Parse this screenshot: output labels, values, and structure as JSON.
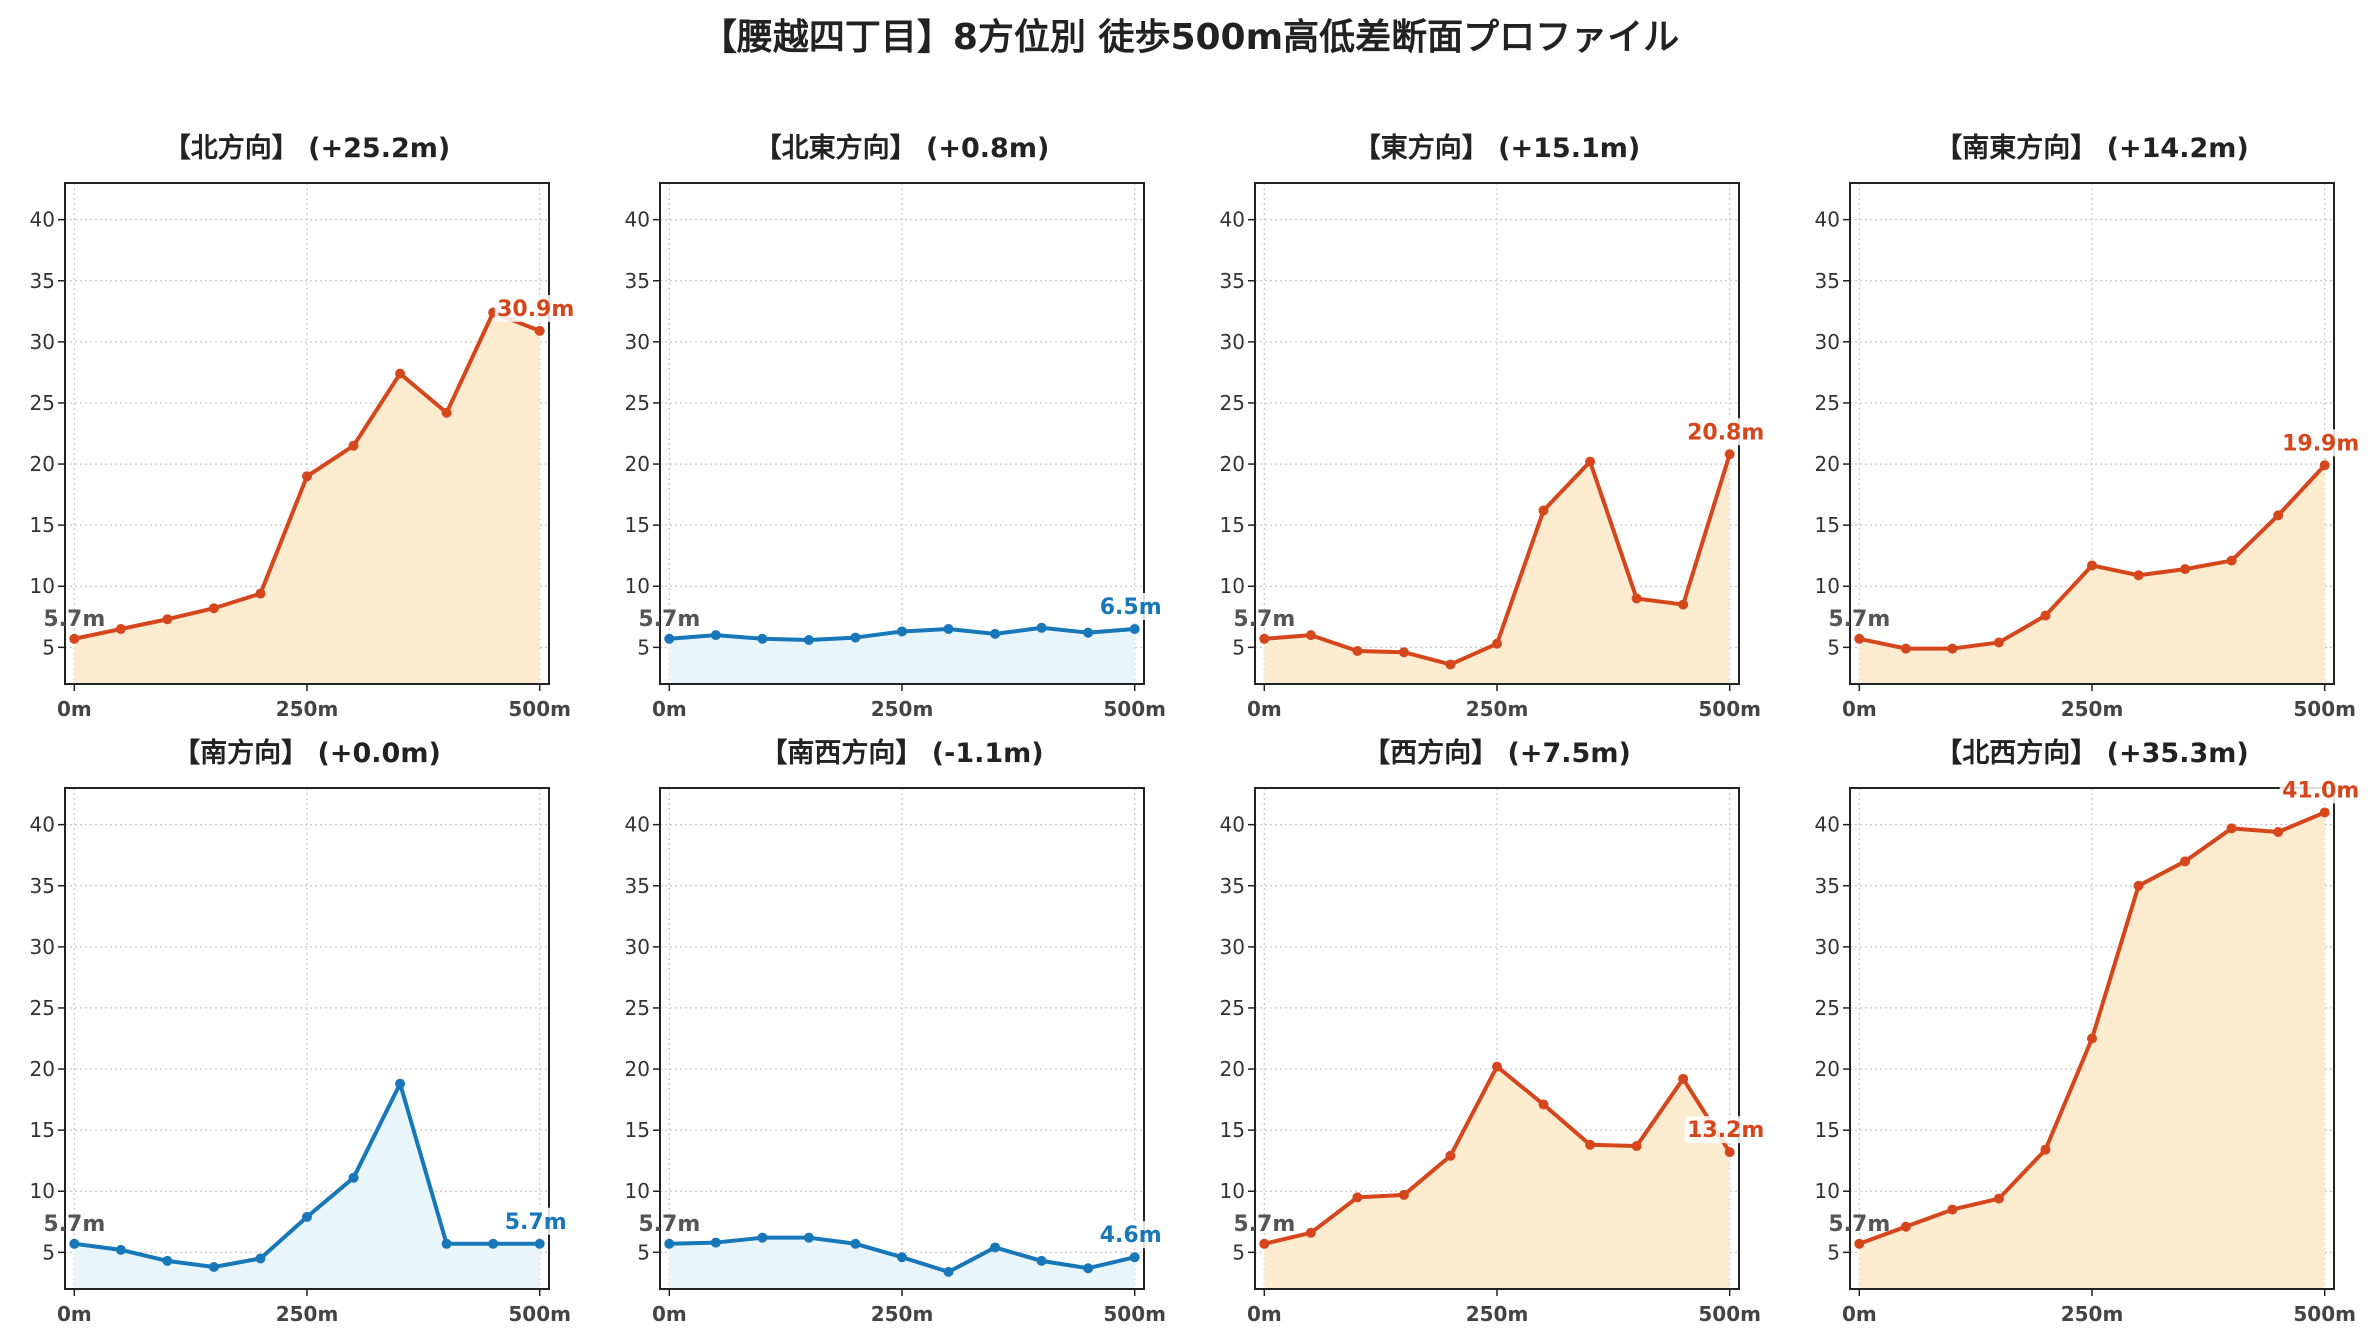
{
  "title": "【腰越四丁目】8方位別 徒歩500m高低差断面プロファイル",
  "colors": {
    "up_line": "#d6461c",
    "up_fill": "#fdebd0",
    "down_line": "#1777b8",
    "down_fill": "#e8f6fc",
    "start_label": "#555555",
    "grid": "#c8c8c8"
  },
  "chart_data": [
    {
      "type": "area",
      "title": "【北方向】 (+25.2m)",
      "trend": "up",
      "x": [
        0,
        50,
        100,
        150,
        200,
        250,
        300,
        350,
        400,
        450,
        500
      ],
      "y": [
        5.7,
        6.5,
        7.3,
        8.2,
        9.4,
        19.0,
        21.5,
        27.4,
        24.2,
        32.4,
        30.9
      ],
      "start_label": "5.7m",
      "end_label": "30.9m",
      "ylim": [
        2,
        43
      ],
      "yticks": [
        5,
        10,
        15,
        20,
        25,
        30,
        35,
        40
      ],
      "xticks": [
        0,
        250,
        500
      ],
      "xtick_labels": [
        "0m",
        "250m",
        "500m"
      ],
      "grid": true
    },
    {
      "type": "area",
      "title": "【北東方向】 (+0.8m)",
      "trend": "down",
      "x": [
        0,
        50,
        100,
        150,
        200,
        250,
        300,
        350,
        400,
        450,
        500
      ],
      "y": [
        5.7,
        6.0,
        5.7,
        5.6,
        5.8,
        6.3,
        6.5,
        6.1,
        6.6,
        6.2,
        6.5
      ],
      "start_label": "5.7m",
      "end_label": "6.5m",
      "ylim": [
        2,
        43
      ],
      "yticks": [
        5,
        10,
        15,
        20,
        25,
        30,
        35,
        40
      ],
      "xticks": [
        0,
        250,
        500
      ],
      "xtick_labels": [
        "0m",
        "250m",
        "500m"
      ],
      "grid": true
    },
    {
      "type": "area",
      "title": "【東方向】 (+15.1m)",
      "trend": "up",
      "x": [
        0,
        50,
        100,
        150,
        200,
        250,
        300,
        350,
        400,
        450,
        500
      ],
      "y": [
        5.7,
        6.0,
        4.7,
        4.6,
        3.6,
        5.3,
        16.2,
        20.2,
        9.0,
        8.5,
        20.8
      ],
      "start_label": "5.7m",
      "end_label": "20.8m",
      "ylim": [
        2,
        43
      ],
      "yticks": [
        5,
        10,
        15,
        20,
        25,
        30,
        35,
        40
      ],
      "xticks": [
        0,
        250,
        500
      ],
      "xtick_labels": [
        "0m",
        "250m",
        "500m"
      ],
      "grid": true
    },
    {
      "type": "area",
      "title": "【南東方向】 (+14.2m)",
      "trend": "up",
      "x": [
        0,
        50,
        100,
        150,
        200,
        250,
        300,
        350,
        400,
        450,
        500
      ],
      "y": [
        5.7,
        4.9,
        4.9,
        5.4,
        7.6,
        11.7,
        10.9,
        11.4,
        12.1,
        15.8,
        19.9
      ],
      "start_label": "5.7m",
      "end_label": "19.9m",
      "ylim": [
        2,
        43
      ],
      "yticks": [
        5,
        10,
        15,
        20,
        25,
        30,
        35,
        40
      ],
      "xticks": [
        0,
        250,
        500
      ],
      "xtick_labels": [
        "0m",
        "250m",
        "500m"
      ],
      "grid": true
    },
    {
      "type": "area",
      "title": "【南方向】 (+0.0m)",
      "trend": "down",
      "x": [
        0,
        50,
        100,
        150,
        200,
        250,
        300,
        350,
        400,
        450,
        500
      ],
      "y": [
        5.7,
        5.2,
        4.3,
        3.8,
        4.5,
        7.9,
        11.1,
        18.8,
        5.7,
        5.7,
        5.7
      ],
      "start_label": "5.7m",
      "end_label": "5.7m",
      "ylim": [
        2,
        43
      ],
      "yticks": [
        5,
        10,
        15,
        20,
        25,
        30,
        35,
        40
      ],
      "xticks": [
        0,
        250,
        500
      ],
      "xtick_labels": [
        "0m",
        "250m",
        "500m"
      ],
      "grid": true
    },
    {
      "type": "area",
      "title": "【南西方向】 (-1.1m)",
      "trend": "down",
      "x": [
        0,
        50,
        100,
        150,
        200,
        250,
        300,
        350,
        400,
        450,
        500
      ],
      "y": [
        5.7,
        5.8,
        6.2,
        6.2,
        5.7,
        4.6,
        3.4,
        5.4,
        4.3,
        3.7,
        4.6
      ],
      "start_label": "5.7m",
      "end_label": "4.6m",
      "ylim": [
        2,
        43
      ],
      "yticks": [
        5,
        10,
        15,
        20,
        25,
        30,
        35,
        40
      ],
      "xticks": [
        0,
        250,
        500
      ],
      "xtick_labels": [
        "0m",
        "250m",
        "500m"
      ],
      "grid": true
    },
    {
      "type": "area",
      "title": "【西方向】 (+7.5m)",
      "trend": "up",
      "x": [
        0,
        50,
        100,
        150,
        200,
        250,
        300,
        350,
        400,
        450,
        500
      ],
      "y": [
        5.7,
        6.6,
        9.5,
        9.7,
        12.9,
        20.2,
        17.1,
        13.8,
        13.7,
        19.2,
        13.2
      ],
      "start_label": "5.7m",
      "end_label": "13.2m",
      "ylim": [
        2,
        43
      ],
      "yticks": [
        5,
        10,
        15,
        20,
        25,
        30,
        35,
        40
      ],
      "xticks": [
        0,
        250,
        500
      ],
      "xtick_labels": [
        "0m",
        "250m",
        "500m"
      ],
      "grid": true
    },
    {
      "type": "area",
      "title": "【北西方向】 (+35.3m)",
      "trend": "up",
      "x": [
        0,
        50,
        100,
        150,
        200,
        250,
        300,
        350,
        400,
        450,
        500
      ],
      "y": [
        5.7,
        7.1,
        8.5,
        9.4,
        13.4,
        22.5,
        35.0,
        37.0,
        39.7,
        39.4,
        41.0
      ],
      "start_label": "5.7m",
      "end_label": "41.0m",
      "ylim": [
        2,
        43
      ],
      "yticks": [
        5,
        10,
        15,
        20,
        25,
        30,
        35,
        40
      ],
      "xticks": [
        0,
        250,
        500
      ],
      "xtick_labels": [
        "0m",
        "250m",
        "500m"
      ],
      "grid": true
    }
  ]
}
